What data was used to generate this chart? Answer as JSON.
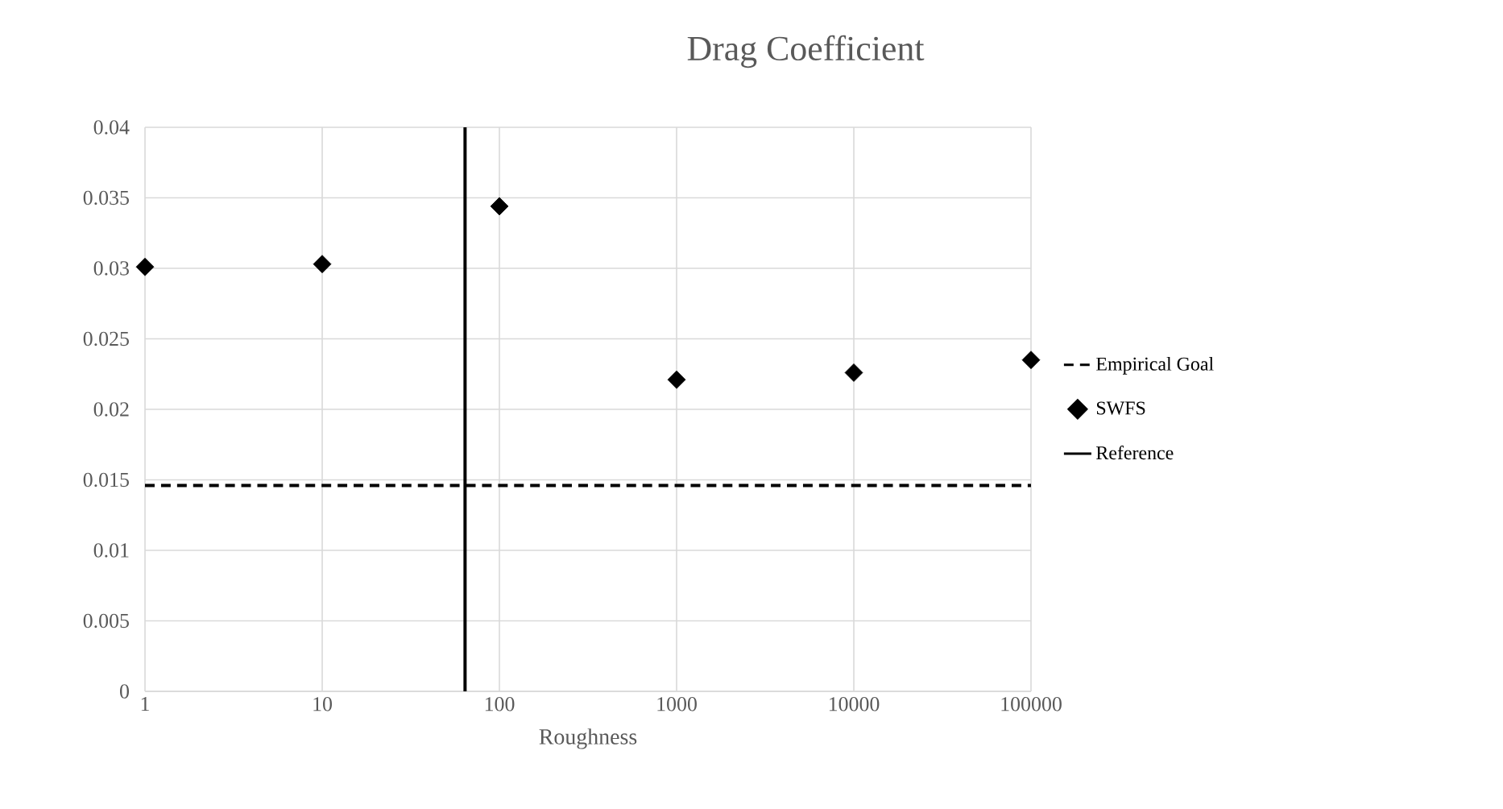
{
  "chart_data": {
    "type": "scatter",
    "title": "Drag Coefficient",
    "xlabel": "Roughness",
    "log": "x",
    "grid": true,
    "legend": "right",
    "xlim": [
      1,
      100000
    ],
    "xticks": [
      1,
      10,
      100,
      1000,
      10000,
      100000
    ],
    "ylim": [
      0,
      0.04
    ],
    "yticks": [
      0,
      0.005,
      0.01,
      0.015,
      0.02,
      0.025,
      0.03,
      0.035,
      0.04
    ],
    "series": [
      {
        "name": "Empirical Goal",
        "type": "line",
        "color": "#000000",
        "line_style": "dashed",
        "marker": "none",
        "x": [
          1,
          100000
        ],
        "values": [
          0.0146,
          0.0146
        ]
      },
      {
        "name": "SWFS",
        "type": "scatter",
        "color": "#000000",
        "marker": "diamond",
        "x": [
          1,
          10,
          100,
          1000,
          10000,
          100000
        ],
        "values": [
          0.0301,
          0.0303,
          0.0344,
          0.0221,
          0.0226,
          0.0235
        ]
      },
      {
        "name": "Reference",
        "type": "line",
        "color": "#000000",
        "line_style": "solid",
        "marker": "none",
        "x": [
          64,
          64
        ],
        "values": [
          0,
          0.04
        ]
      }
    ]
  }
}
